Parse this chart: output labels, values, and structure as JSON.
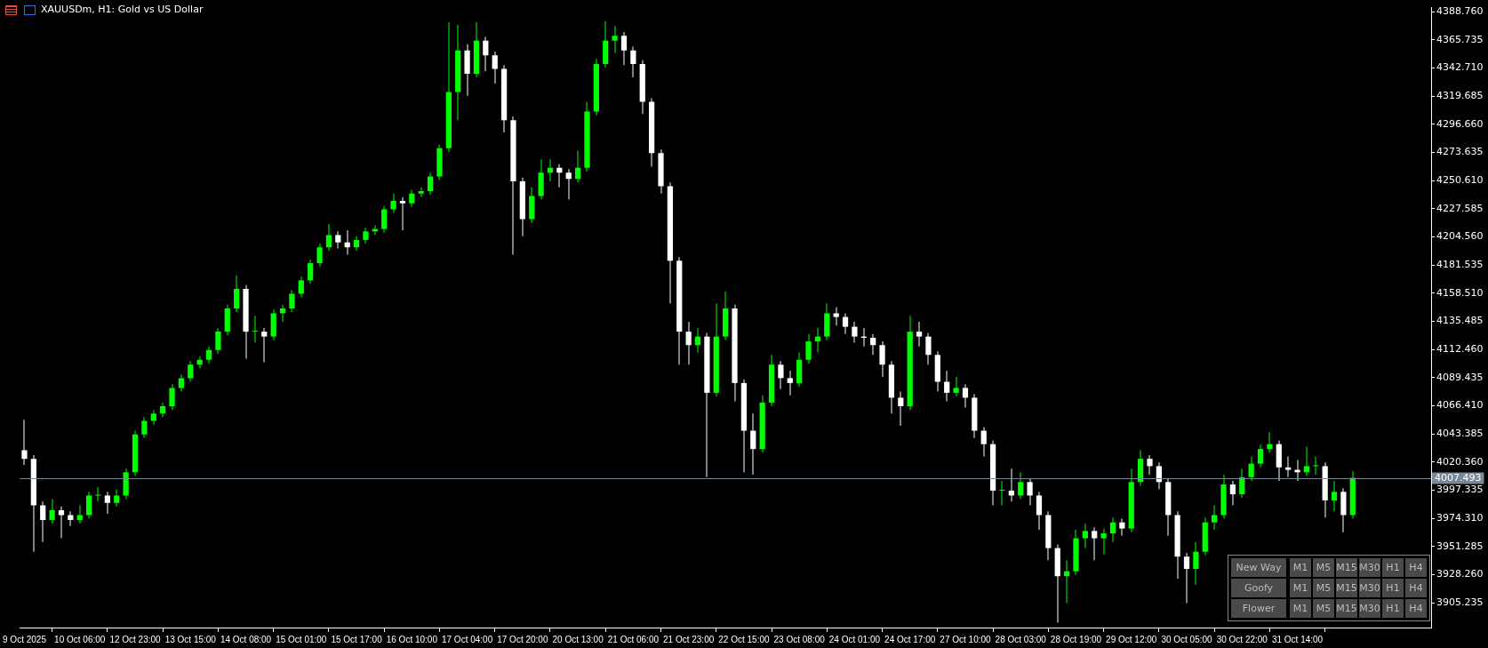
{
  "chart_data": [
    {
      "type": "candlestick",
      "title": "XAUUSDm, H1: Gold vs US Dollar",
      "colors": [
        "#ffffff",
        "#ffffff",
        "#ffffff",
        "#00ff00",
        "#ffffff",
        "#ffffff",
        "#00ff00",
        "#00ff00",
        "#00ff00",
        "#ffffff",
        "#00ff00",
        "#00ff00",
        "#00ff00",
        "#00ff00",
        "#00ff00",
        "#00ff00",
        "#00ff00",
        "#00ff00",
        "#00ff00",
        "#00ff00",
        "#00ff00",
        "#00ff00",
        "#00ff00",
        "#00ff00",
        "#ffffff",
        "#00ff00",
        "#ffffff",
        "#00ff00",
        "#00ff00",
        "#00ff00",
        "#00ff00",
        "#00ff00",
        "#00ff00",
        "#00ff00",
        "#ffffff",
        "#ffffff",
        "#00ff00",
        "#00ff00",
        "#00ff00",
        "#00ff00",
        "#00ff00",
        "#ffffff",
        "#00ff00",
        "#00ff00",
        "#00ff00",
        "#00ff00",
        "#00ff00",
        "#00ff00",
        "#ffffff",
        "#00ff00",
        "#ffffff",
        "#ffffff",
        "#ffffff",
        "#ffffff",
        "#ffffff",
        "#00ff00",
        "#00ff00",
        "#00ff00",
        "#ffffff",
        "#ffffff",
        "#00ff00",
        "#00ff00",
        "#00ff00",
        "#00ff00",
        "#00ff00",
        "#ffffff",
        "#ffffff",
        "#ffffff",
        "#ffffff",
        "#ffffff",
        "#ffffff",
        "#ffffff",
        "#ffffff",
        "#00ff00",
        "#ffffff",
        "#00ff00",
        "#00ff00",
        "#ffffff",
        "#ffffff",
        "#ffffff",
        "#00ff00",
        "#00ff00",
        "#ffffff",
        "#ffffff",
        "#00ff00",
        "#00ff00",
        "#00ff00",
        "#00ff00",
        "#ffffff",
        "#ffffff",
        "#ffffff",
        "#ffffff",
        "#ffffff",
        "#ffffff",
        "#ffffff",
        "#ffffff",
        "#00ff00",
        "#ffffff",
        "#ffffff",
        "#ffffff",
        "#ffffff",
        "#00ff00",
        "#ffffff",
        "#ffffff",
        "#ffffff",
        "#ffffff",
        "#00ff00",
        "#ffffff",
        "#00ff00",
        "#ffffff",
        "#ffffff",
        "#ffffff",
        "#ffffff",
        "#00ff00",
        "#00ff00",
        "#00ff00",
        "#ffffff",
        "#00ff00",
        "#00ff00",
        "#ffffff",
        "#00ff00",
        "#00ff00",
        "#ffffff",
        "#ffffff",
        "#ffffff",
        "#ffffff",
        "#ffffff",
        "#00ff00",
        "#00ff00",
        "#00ff00",
        "#00ff00",
        "#ffffff",
        "#00ff00",
        "#00ff00",
        "#00ff00",
        "#00ff00",
        "#ffffff",
        "#ffffff",
        "#ffffff",
        "#00ff00",
        "#00ff00",
        "#ffffff",
        "#00ff00",
        "#ffffff",
        "#00ff00",
        null,
        null,
        null,
        null,
        null,
        null,
        null,
        null
      ],
      "categories": [
        "9 Oct 2025",
        null,
        null,
        null,
        null,
        null,
        "10 Oct 06:00",
        null,
        null,
        null,
        null,
        null,
        "12 Oct 23:00",
        null,
        null,
        null,
        null,
        null,
        "13 Oct 15:00",
        null,
        null,
        null,
        null,
        null,
        "14 Oct 08:00",
        null,
        null,
        null,
        null,
        null,
        "15 Oct 01:00",
        null,
        null,
        null,
        null,
        null,
        "15 Oct 17:00",
        null,
        null,
        null,
        null,
        null,
        "16 Oct 10:00",
        null,
        null,
        null,
        null,
        null,
        "17 Oct 04:00",
        null,
        null,
        null,
        null,
        null,
        "17 Oct 20:00",
        null,
        null,
        null,
        null,
        null,
        "20 Oct 13:00",
        null,
        null,
        null,
        null,
        null,
        "21 Oct 06:00",
        null,
        null,
        null,
        null,
        null,
        "21 Oct 23:00",
        null,
        null,
        null,
        null,
        null,
        "22 Oct 15:00",
        null,
        null,
        null,
        null,
        null,
        "23 Oct 08:00",
        null,
        null,
        null,
        null,
        null,
        "24 Oct 01:00",
        null,
        null,
        null,
        null,
        null,
        "24 Oct 17:00",
        null,
        null,
        null,
        null,
        null,
        "27 Oct 10:00",
        null,
        null,
        null,
        null,
        null,
        "28 Oct 03:00",
        null,
        null,
        null,
        null,
        null,
        "28 Oct 19:00",
        null,
        null,
        null,
        null,
        null,
        "29 Oct 12:00",
        null,
        null,
        null,
        null,
        null,
        "30 Oct 05:00",
        null,
        null,
        null,
        null,
        null,
        "30 Oct 22:00",
        null,
        null,
        null,
        null,
        null,
        "31 Oct 14:00",
        null,
        null,
        null,
        null,
        null,
        null,
        null,
        null,
        null,
        null,
        null,
        null,
        null,
        null
      ],
      "ohlc": [
        [
          4030,
          4055,
          4018,
          4023
        ],
        [
          4023,
          4026,
          3947,
          3985
        ],
        [
          3985,
          3988,
          3955,
          3973
        ],
        [
          3973,
          3990,
          3970,
          3981
        ],
        [
          3981,
          3984,
          3958,
          3977
        ],
        [
          3977,
          3980,
          3968,
          3973
        ],
        [
          3973,
          3985,
          3970,
          3977
        ],
        [
          3977,
          3996,
          3974,
          3993
        ],
        [
          3993,
          4000,
          3988,
          3993
        ],
        [
          3993,
          3996,
          3978,
          3987
        ],
        [
          3987,
          3998,
          3984,
          3993
        ],
        [
          3993,
          4015,
          3990,
          4012
        ],
        [
          4012,
          4046,
          4009,
          4043
        ],
        [
          4043,
          4057,
          4040,
          4054
        ],
        [
          4054,
          4063,
          4051,
          4060
        ],
        [
          4060,
          4069,
          4057,
          4066
        ],
        [
          4066,
          4084,
          4063,
          4081
        ],
        [
          4081,
          4092,
          4078,
          4089
        ],
        [
          4089,
          4103,
          4086,
          4100
        ],
        [
          4100,
          4107,
          4097,
          4104
        ],
        [
          4104,
          4115,
          4101,
          4112
        ],
        [
          4112,
          4130,
          4109,
          4127
        ],
        [
          4127,
          4149,
          4124,
          4146
        ],
        [
          4146,
          4173,
          4143,
          4162
        ],
        [
          4162,
          4165,
          4105,
          4127
        ],
        [
          4127,
          4140,
          4118,
          4127
        ],
        [
          4127,
          4130,
          4102,
          4123
        ],
        [
          4123,
          4145,
          4120,
          4142
        ],
        [
          4142,
          4149,
          4135,
          4146
        ],
        [
          4146,
          4161,
          4143,
          4158
        ],
        [
          4158,
          4172,
          4155,
          4169
        ],
        [
          4169,
          4186,
          4166,
          4183
        ],
        [
          4183,
          4199,
          4180,
          4196
        ],
        [
          4196,
          4215,
          4193,
          4206
        ],
        [
          4206,
          4209,
          4195,
          4200
        ],
        [
          4200,
          4210,
          4190,
          4196
        ],
        [
          4196,
          4205,
          4193,
          4202
        ],
        [
          4202,
          4212,
          4199,
          4209
        ],
        [
          4209,
          4214,
          4206,
          4211
        ],
        [
          4211,
          4230,
          4208,
          4227
        ],
        [
          4227,
          4240,
          4224,
          4234
        ],
        [
          4234,
          4237,
          4210,
          4232
        ],
        [
          4232,
          4243,
          4229,
          4240
        ],
        [
          4240,
          4245,
          4237,
          4242
        ],
        [
          4242,
          4257,
          4239,
          4254
        ],
        [
          4254,
          4280,
          4251,
          4277
        ],
        [
          4277,
          4380,
          4274,
          4323
        ],
        [
          4323,
          4378,
          4300,
          4357
        ],
        [
          4357,
          4362,
          4320,
          4338
        ],
        [
          4338,
          4380,
          4335,
          4365
        ],
        [
          4365,
          4368,
          4340,
          4353
        ],
        [
          4353,
          4356,
          4330,
          4342
        ],
        [
          4342,
          4345,
          4290,
          4300
        ],
        [
          4300,
          4303,
          4190,
          4250
        ],
        [
          4250,
          4253,
          4205,
          4219
        ],
        [
          4219,
          4245,
          4216,
          4238
        ],
        [
          4238,
          4268,
          4235,
          4257
        ],
        [
          4257,
          4268,
          4250,
          4261
        ],
        [
          4261,
          4264,
          4245,
          4257
        ],
        [
          4257,
          4260,
          4235,
          4252
        ],
        [
          4252,
          4275,
          4249,
          4261
        ],
        [
          4261,
          4315,
          4258,
          4307
        ],
        [
          4307,
          4350,
          4304,
          4346
        ],
        [
          4346,
          4381,
          4343,
          4365
        ],
        [
          4365,
          4377,
          4355,
          4369
        ],
        [
          4369,
          4372,
          4345,
          4357
        ],
        [
          4357,
          4360,
          4335,
          4346
        ],
        [
          4346,
          4349,
          4305,
          4315
        ],
        [
          4315,
          4318,
          4262,
          4273
        ],
        [
          4273,
          4276,
          4240,
          4246
        ],
        [
          4246,
          4249,
          4150,
          4185
        ],
        [
          4185,
          4188,
          4100,
          4127
        ],
        [
          4127,
          4135,
          4100,
          4116
        ],
        [
          4116,
          4130,
          4110,
          4123
        ],
        [
          4123,
          4126,
          4008,
          4077
        ],
        [
          4077,
          4150,
          4074,
          4123
        ],
        [
          4123,
          4160,
          4120,
          4146
        ],
        [
          4146,
          4149,
          4070,
          4085
        ],
        [
          4085,
          4088,
          4012,
          4046
        ],
        [
          4046,
          4060,
          4010,
          4031
        ],
        [
          4031,
          4075,
          4028,
          4069
        ],
        [
          4069,
          4108,
          4066,
          4100
        ],
        [
          4100,
          4103,
          4080,
          4089
        ],
        [
          4089,
          4095,
          4075,
          4085
        ],
        [
          4085,
          4110,
          4082,
          4104
        ],
        [
          4104,
          4125,
          4101,
          4119
        ],
        [
          4119,
          4130,
          4110,
          4123
        ],
        [
          4123,
          4150,
          4120,
          4142
        ],
        [
          4142,
          4147,
          4132,
          4139
        ],
        [
          4139,
          4142,
          4125,
          4131
        ],
        [
          4131,
          4135,
          4118,
          4123
        ],
        [
          4123,
          4130,
          4115,
          4122
        ],
        [
          4122,
          4125,
          4108,
          4116
        ],
        [
          4116,
          4119,
          4090,
          4100
        ],
        [
          4100,
          4103,
          4060,
          4073
        ],
        [
          4073,
          4078,
          4050,
          4066
        ],
        [
          4066,
          4140,
          4063,
          4127
        ],
        [
          4127,
          4135,
          4115,
          4123
        ],
        [
          4123,
          4126,
          4100,
          4108
        ],
        [
          4108,
          4111,
          4078,
          4086
        ],
        [
          4086,
          4095,
          4070,
          4077
        ],
        [
          4077,
          4090,
          4074,
          4081
        ],
        [
          4081,
          4084,
          4065,
          4073
        ],
        [
          4073,
          4076,
          4040,
          4046
        ],
        [
          4046,
          4049,
          4025,
          4035
        ],
        [
          4035,
          4038,
          3985,
          3997
        ],
        [
          3997,
          4005,
          3985,
          3997
        ],
        [
          3997,
          4015,
          3988,
          3993
        ],
        [
          3993,
          4012,
          3990,
          4004
        ],
        [
          4004,
          4007,
          3985,
          3993
        ],
        [
          3993,
          3996,
          3965,
          3977
        ],
        [
          3977,
          3980,
          3940,
          3950
        ],
        [
          3950,
          3953,
          3889,
          3927
        ],
        [
          3927,
          3940,
          3905,
          3931
        ],
        [
          3931,
          3965,
          3928,
          3958
        ],
        [
          3958,
          3970,
          3950,
          3964
        ],
        [
          3964,
          3967,
          3940,
          3958
        ],
        [
          3958,
          3966,
          3945,
          3962
        ],
        [
          3962,
          3975,
          3955,
          3971
        ],
        [
          3971,
          3974,
          3960,
          3966
        ],
        [
          3966,
          4015,
          3963,
          4004
        ],
        [
          4004,
          4030,
          4001,
          4023
        ],
        [
          4023,
          4026,
          4010,
          4017
        ],
        [
          4017,
          4020,
          3998,
          4004
        ],
        [
          4004,
          4007,
          3960,
          3977
        ],
        [
          3977,
          3980,
          3925,
          3943
        ],
        [
          3943,
          3946,
          3905,
          3933
        ],
        [
          3933,
          3955,
          3920,
          3947
        ],
        [
          3947,
          3975,
          3944,
          3971
        ],
        [
          3971,
          3985,
          3965,
          3977
        ],
        [
          3977,
          4010,
          3974,
          4002
        ],
        [
          4002,
          4005,
          3985,
          3994
        ],
        [
          3994,
          4015,
          3991,
          4008
        ],
        [
          4008,
          4025,
          4005,
          4019
        ],
        [
          4019,
          4035,
          4016,
          4031
        ],
        [
          4031,
          4045,
          4028,
          4035
        ],
        [
          4035,
          4038,
          4005,
          4016
        ],
        [
          4016,
          4025,
          4008,
          4014
        ],
        [
          4014,
          4022,
          4005,
          4012
        ],
        [
          4012,
          4033,
          4009,
          4017
        ],
        [
          4017,
          4025,
          4010,
          4017
        ],
        [
          4017,
          4020,
          3975,
          3989
        ],
        [
          3989,
          4005,
          3980,
          3996
        ],
        [
          3996,
          3999,
          3963,
          3977
        ],
        [
          3977,
          4013,
          3974,
          4007.5
        ],
        null,
        null,
        null,
        null,
        null,
        null,
        null,
        null
      ],
      "ylim": [
        3885,
        4392
      ],
      "yticks": [
        {
          "value": 3905.235,
          "label": "3905.235"
        },
        {
          "value": 3928.26,
          "label": "3928.260"
        },
        {
          "value": 3951.285,
          "label": "3951.285"
        },
        {
          "value": 3974.31,
          "label": "3974.310"
        },
        {
          "value": 3997.335,
          "label": "3997.335"
        },
        {
          "value": 4020.36,
          "label": "4020.360"
        },
        {
          "value": 4043.385,
          "label": "4043.385"
        },
        {
          "value": 4066.41,
          "label": "4066.410"
        },
        {
          "value": 4089.435,
          "label": "4089.435"
        },
        {
          "value": 4112.46,
          "label": "4112.460"
        },
        {
          "value": 4135.485,
          "label": "4135.485"
        },
        {
          "value": 4158.51,
          "label": "4158.510"
        },
        {
          "value": 4181.535,
          "label": "4181.535"
        },
        {
          "value": 4204.56,
          "label": "4204.560"
        },
        {
          "value": 4227.585,
          "label": "4227.585"
        },
        {
          "value": 4250.61,
          "label": "4250.610"
        },
        {
          "value": 4273.635,
          "label": "4273.635"
        },
        {
          "value": 4296.66,
          "label": "4296.660"
        },
        {
          "value": 4319.685,
          "label": "4319.685"
        },
        {
          "value": 4342.71,
          "label": "4342.710"
        },
        {
          "value": 4365.735,
          "label": "4365.735"
        },
        {
          "value": 4388.76,
          "label": "4388.760"
        }
      ],
      "ref_lines": [
        {
          "axis": "y",
          "value": 4007.493,
          "label": "4007.493",
          "color": "#778899"
        }
      ]
    },
    {
      "type": "other",
      "annotations": [
        "New Way",
        "M1",
        "M5",
        "M15",
        "M30",
        "H1",
        "H4",
        "Goofy",
        "M1",
        "M5",
        "M15",
        "M30",
        "H1",
        "H4",
        "Flower",
        "M1",
        "M5",
        "M15",
        "M30",
        "H1",
        "H4"
      ]
    }
  ]
}
